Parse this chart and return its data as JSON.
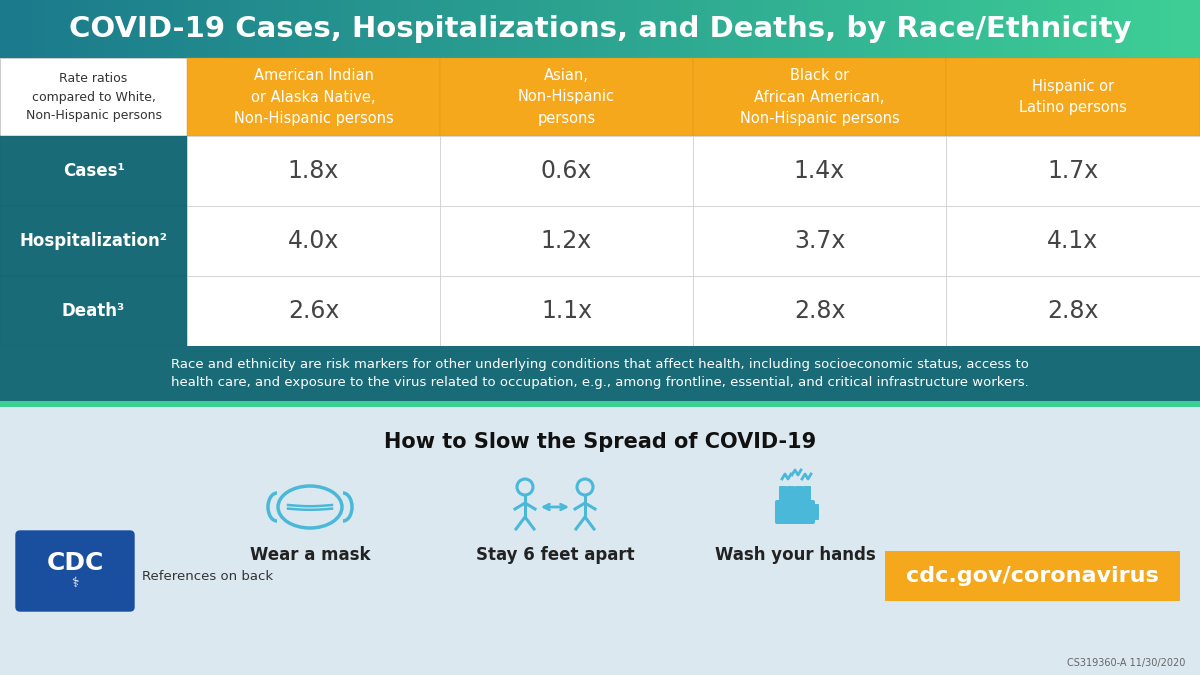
{
  "title": "COVID-19 Cases, Hospitalizations, and Deaths, by Race/Ethnicity",
  "title_bg_left": "#1b7a8c",
  "title_bg_right": "#3ecf96",
  "title_text_color": "#ffffff",
  "header_bg_color": "#f5a81c",
  "header_text_color": "#ffffff",
  "row_label_bg_color": "#1a6b78",
  "row_label_text_color": "#ffffff",
  "data_bg_color": "#ffffff",
  "data_text_color": "#444444",
  "footnote_bg_color": "#1a6b78",
  "footnote_text_color": "#ffffff",
  "bottom_bg_color": "#dce8f0",
  "bottom_title": "How to Slow the Spread of COVID-19",
  "bottom_title_color": "#111111",
  "orange_box_color": "#f5a81c",
  "orange_box_text": "cdc.gov/coronavirus",
  "orange_box_text_color": "#ffffff",
  "ref_text": "References on back",
  "code_text": "CS319360-A 11/30/2020",
  "icon_color": "#4ab8d8",
  "col_headers": [
    "Rate ratios\ncompared to White,\nNon-Hispanic persons",
    "American Indian\nor Alaska Native,\nNon-Hispanic persons",
    "Asian,\nNon-Hispanic\npersons",
    "Black or\nAfrican American,\nNon-Hispanic persons",
    "Hispanic or\nLatino persons"
  ],
  "row_labels": [
    "Cases¹",
    "Hospitalization²",
    "Death³"
  ],
  "table_data": [
    [
      "1.8x",
      "0.6x",
      "1.4x",
      "1.7x"
    ],
    [
      "4.0x",
      "1.2x",
      "3.7x",
      "4.1x"
    ],
    [
      "2.6x",
      "1.1x",
      "2.8x",
      "2.8x"
    ]
  ],
  "footnote_line1": "Race and ethnicity are risk markers for other underlying conditions that affect health, including socioeconomic status, access to",
  "footnote_line2": "health care, and exposure to the virus related to occupation, e.g., among frontline, essential, and critical infrastructure workers.",
  "bottom_tips": [
    "Wear a mask",
    "Stay 6 feet apart",
    "Wash your hands"
  ]
}
